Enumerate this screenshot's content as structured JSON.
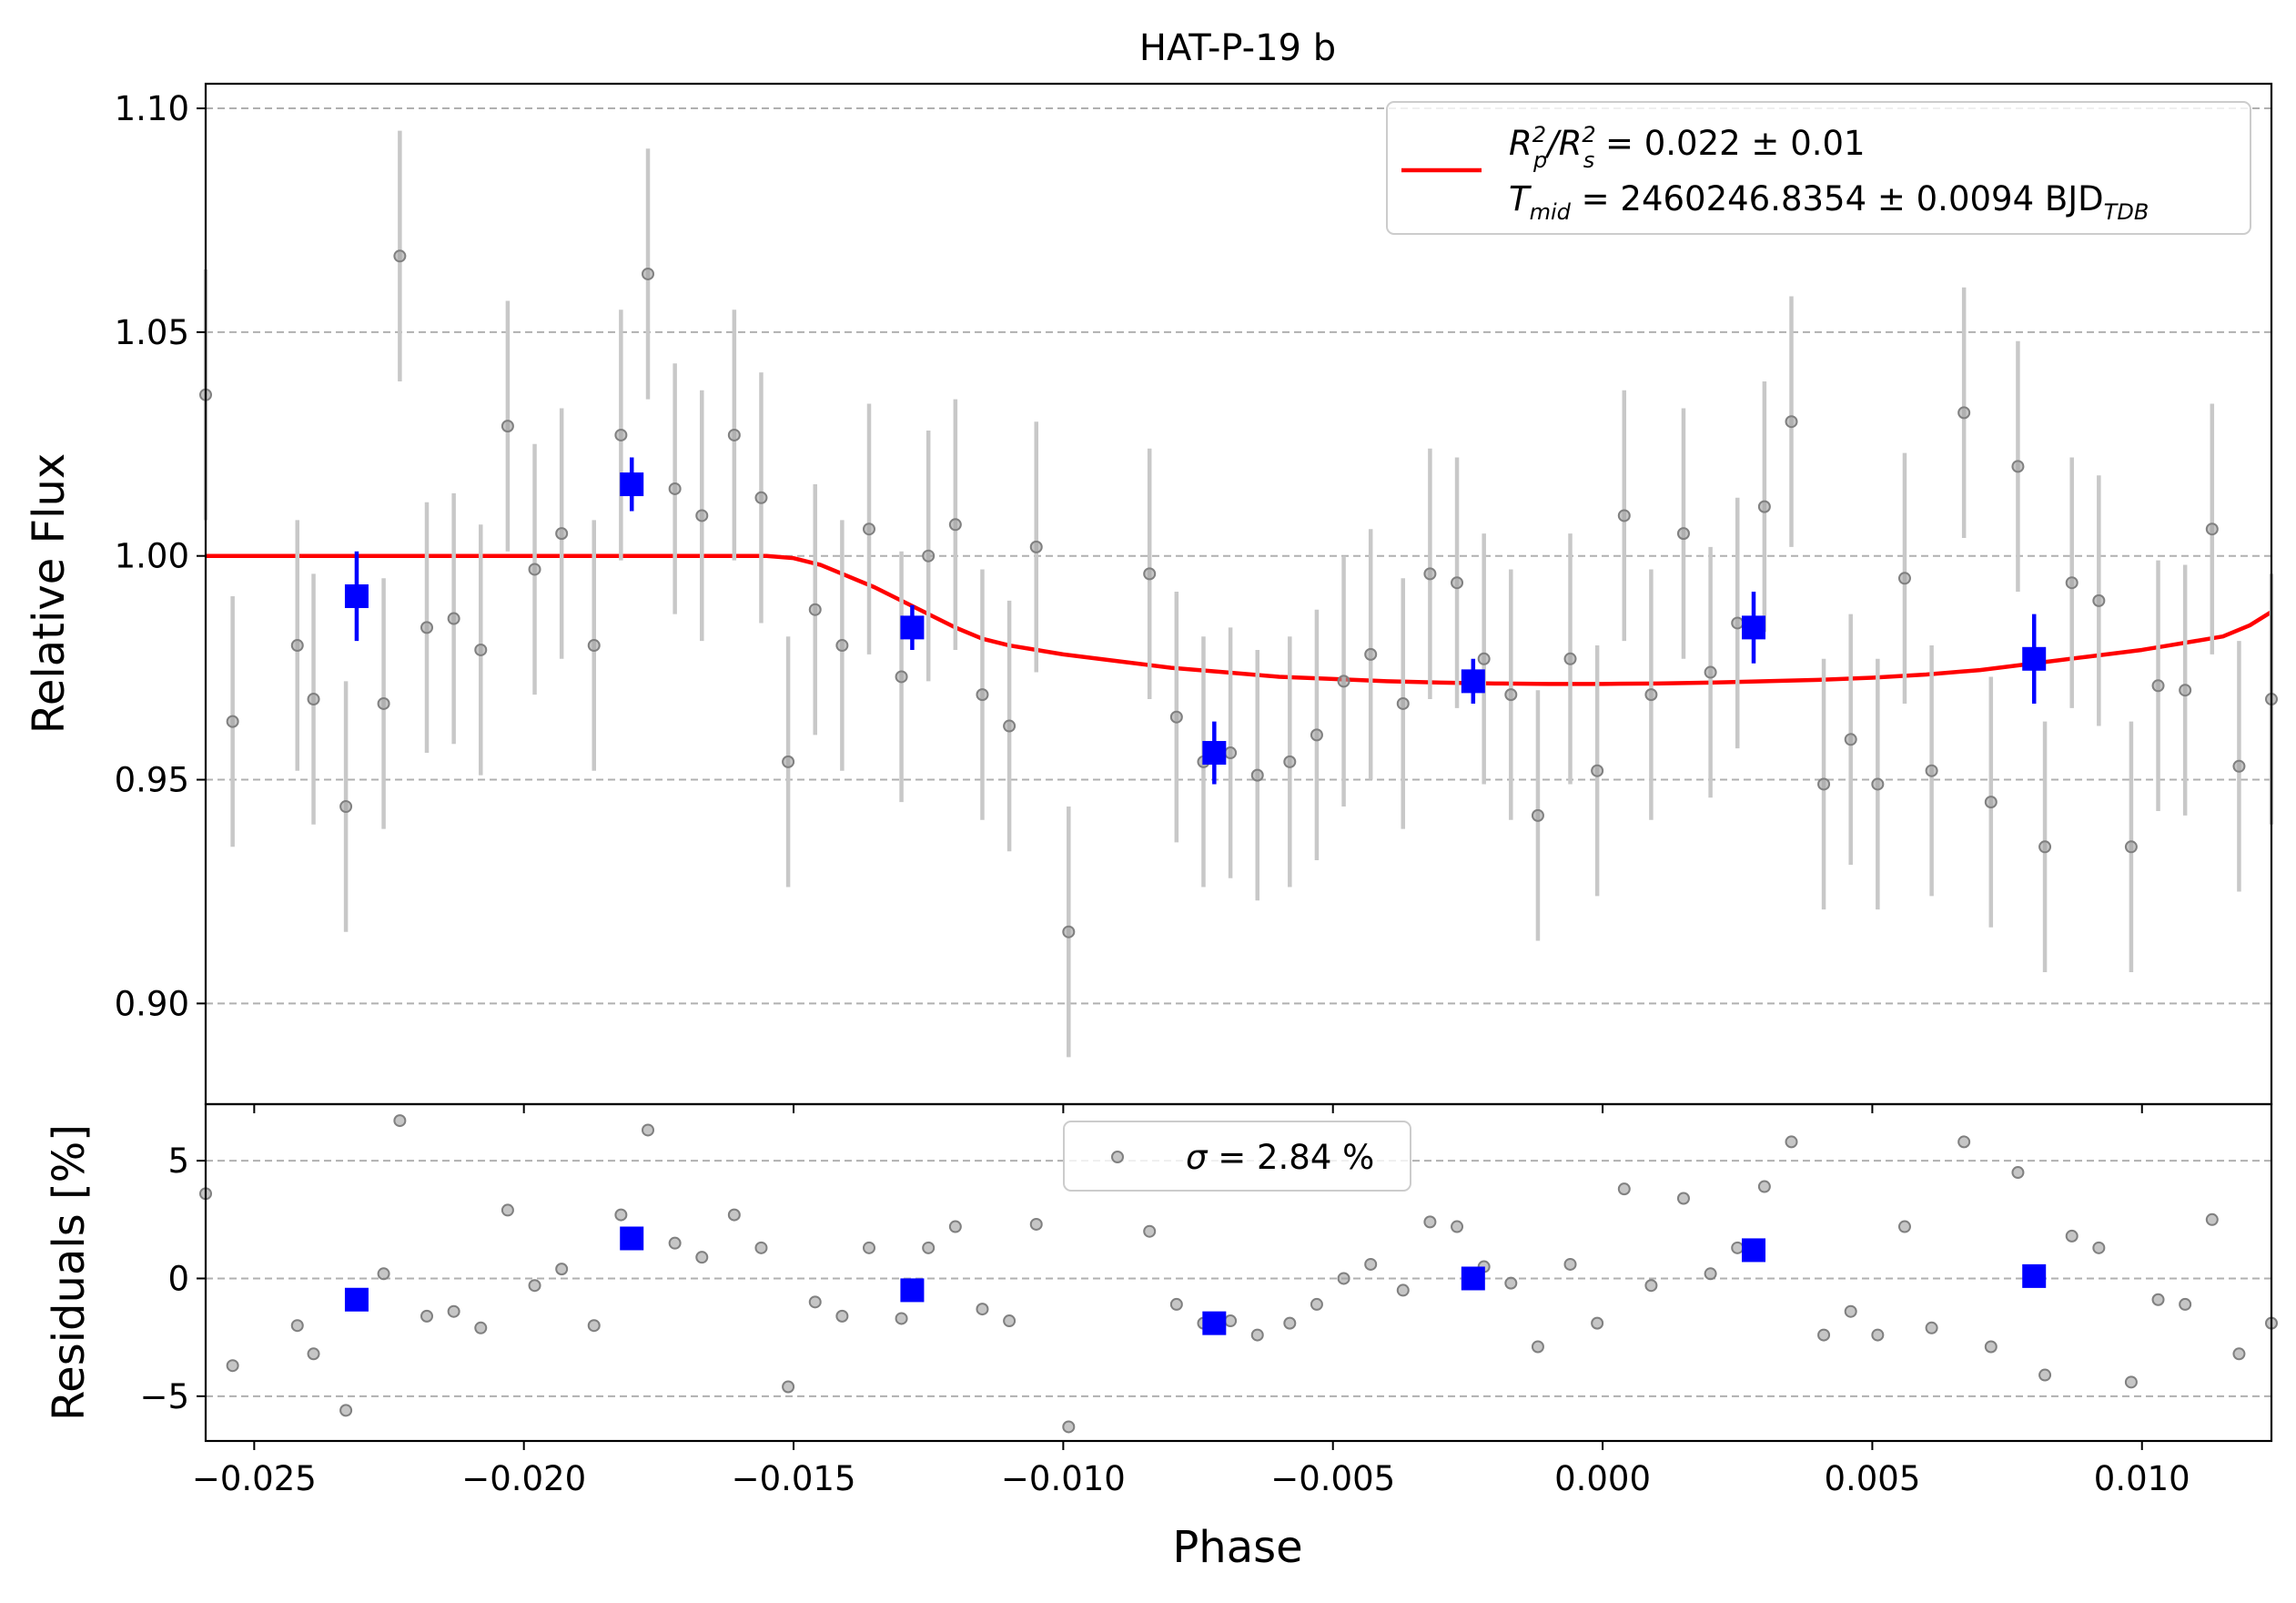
{
  "chart_data": [
    {
      "type": "scatter",
      "title": "HAT-P-19 b",
      "xlabel": "",
      "ylabel": "Relative Flux",
      "xlim": [
        -0.0259,
        0.0124
      ],
      "ylim": [
        0.8775,
        1.1055
      ],
      "grid": "y-dashed",
      "yticks": [
        "0.90",
        "0.95",
        "1.00",
        "1.05",
        "1.10"
      ],
      "yticks_values": [
        0.9,
        0.95,
        1.0,
        1.05,
        1.1
      ],
      "legend": {
        "placement": "upper right",
        "line1": {
          "main": "R",
          "sup1": "2",
          "sub1": "p",
          "slash": "/R",
          "sup2": "2",
          "sub2": "s",
          "value": " = 0.022 ± 0.01"
        },
        "line2": {
          "main": "T",
          "sub1": "mid",
          "value": " = 2460246.8354 ± 0.0094 BJD",
          "sub2": "TDB"
        }
      },
      "series": [
        {
          "kind": "raw",
          "color": "#808080",
          "x": [
            -0.0259,
            -0.0254,
            -0.0242,
            -0.0239,
            -0.0233,
            -0.0226,
            -0.0223,
            -0.0218,
            -0.0213,
            -0.0208,
            -0.0203,
            -0.0198,
            -0.0193,
            -0.0187,
            -0.0182,
            -0.0177,
            -0.0172,
            -0.0167,
            -0.0161,
            -0.0156,
            -0.0151,
            -0.0146,
            -0.0141,
            -0.0136,
            -0.013,
            -0.0125,
            -0.012,
            -0.0115,
            -0.011,
            -0.0105,
            -0.0099,
            -0.0084,
            -0.0079,
            -0.0074,
            -0.0069,
            -0.0064,
            -0.0058,
            -0.0053,
            -0.0048,
            -0.0043,
            -0.0037,
            -0.0032,
            -0.0027,
            -0.0022,
            -0.0017,
            -0.0012,
            -0.0006,
            -0.0001,
            0.0004,
            0.0009,
            0.0015,
            0.002,
            0.0025,
            0.003,
            0.0035,
            0.0041,
            0.0046,
            0.0051,
            0.0056,
            0.0061,
            0.0067,
            0.0072,
            0.0077,
            0.0082,
            0.0087,
            0.0092,
            0.0098,
            0.0103,
            0.0108,
            0.0113,
            0.0118,
            0.0124
          ],
          "y": [
            1.036,
            0.963,
            0.98,
            0.968,
            0.944,
            0.967,
            1.067,
            0.984,
            0.986,
            0.979,
            1.029,
            0.997,
            1.005,
            0.98,
            1.027,
            1.063,
            1.015,
            1.009,
            1.027,
            1.013,
            0.954,
            0.988,
            0.98,
            1.006,
            0.973,
            1.0,
            1.007,
            0.969,
            0.962,
            1.002,
            0.916,
            0.996,
            0.964,
            0.954,
            0.956,
            0.951,
            0.954,
            0.96,
            0.972,
            0.978,
            0.967,
            0.996,
            0.994,
            0.977,
            0.969,
            0.942,
            0.977,
            0.952,
            1.009,
            0.969,
            1.005,
            0.974,
            0.985,
            1.011,
            1.03,
            0.949,
            0.959,
            0.949,
            0.995,
            0.952,
            1.032,
            0.945,
            1.02,
            0.935,
            0.994,
            0.99,
            0.935,
            0.971,
            0.97,
            1.006,
            0.953,
            0.968
          ],
          "yerr": 0.028
        },
        {
          "kind": "binned",
          "color": "#0000ff",
          "x": [
            -0.0231,
            -0.018,
            -0.0128,
            -0.0072,
            -0.0024,
            0.0028,
            0.008
          ],
          "y": [
            0.991,
            1.016,
            0.984,
            0.956,
            0.972,
            0.984,
            0.977
          ],
          "yerr": [
            0.01,
            0.006,
            0.005,
            0.007,
            0.005,
            0.008,
            0.01
          ]
        },
        {
          "kind": "model",
          "color": "#ff0000",
          "x": [
            -0.0259,
            -0.016,
            -0.0155,
            -0.015,
            -0.0145,
            -0.014,
            -0.0135,
            -0.013,
            -0.0125,
            -0.012,
            -0.0115,
            -0.011,
            -0.01,
            -0.009,
            -0.008,
            -0.007,
            -0.006,
            -0.005,
            -0.004,
            -0.003,
            -0.002,
            -0.001,
            0.0,
            0.001,
            0.002,
            0.003,
            0.004,
            0.005,
            0.006,
            0.007,
            0.008,
            0.009,
            0.01,
            0.0105,
            0.011,
            0.0115,
            0.012,
            0.0124
          ],
          "y": [
            1.0,
            1.0,
            1.0,
            0.9995,
            0.998,
            0.9955,
            0.993,
            0.99,
            0.987,
            0.984,
            0.9815,
            0.98,
            0.978,
            0.9765,
            0.975,
            0.974,
            0.973,
            0.9725,
            0.972,
            0.9717,
            0.9715,
            0.9714,
            0.9714,
            0.9715,
            0.9717,
            0.972,
            0.9723,
            0.9728,
            0.9735,
            0.9745,
            0.976,
            0.9775,
            0.979,
            0.98,
            0.981,
            0.982,
            0.9845,
            0.9875
          ]
        }
      ]
    },
    {
      "type": "scatter",
      "title": "",
      "xlabel": "Phase",
      "ylabel": "Residuals [%]",
      "xlim": [
        -0.0259,
        0.0124
      ],
      "ylim": [
        -6.9,
        7.4
      ],
      "grid": "y-dashed",
      "yticks": [
        "−5",
        "0",
        "5"
      ],
      "yticks_values": [
        -5,
        0,
        5
      ],
      "xticks": [
        "−0.025",
        "−0.020",
        "−0.015",
        "−0.010",
        "−0.005",
        "0.000",
        "0.005",
        "0.010"
      ],
      "xticks_values": [
        -0.025,
        -0.02,
        -0.015,
        -0.01,
        -0.005,
        0.0,
        0.005,
        0.01
      ],
      "legend": {
        "placement": "upper center",
        "sigma": "σ",
        "text": " = 2.84 %"
      },
      "series": [
        {
          "kind": "raw",
          "color": "#808080",
          "x": [
            -0.0259,
            -0.0254,
            -0.0242,
            -0.0239,
            -0.0233,
            -0.0226,
            -0.0223,
            -0.0218,
            -0.0213,
            -0.0208,
            -0.0203,
            -0.0198,
            -0.0193,
            -0.0187,
            -0.0182,
            -0.0177,
            -0.0172,
            -0.0167,
            -0.0161,
            -0.0156,
            -0.0151,
            -0.0146,
            -0.0141,
            -0.0136,
            -0.013,
            -0.0125,
            -0.012,
            -0.0115,
            -0.011,
            -0.0105,
            -0.0099,
            -0.0084,
            -0.0079,
            -0.0074,
            -0.0069,
            -0.0064,
            -0.0058,
            -0.0053,
            -0.0048,
            -0.0043,
            -0.0037,
            -0.0032,
            -0.0027,
            -0.0022,
            -0.0017,
            -0.0012,
            -0.0006,
            -0.0001,
            0.0004,
            0.0009,
            0.0015,
            0.002,
            0.0025,
            0.003,
            0.0035,
            0.0041,
            0.0046,
            0.0051,
            0.0056,
            0.0061,
            0.0067,
            0.0072,
            0.0077,
            0.0082,
            0.0087,
            0.0092,
            0.0098,
            0.0103,
            0.0108,
            0.0113,
            0.0118,
            0.0124
          ],
          "y": [
            3.6,
            -3.7,
            -2.0,
            -3.2,
            -5.6,
            0.2,
            6.7,
            -1.6,
            -1.4,
            -2.1,
            2.9,
            -0.3,
            0.4,
            -2.0,
            2.7,
            6.3,
            1.5,
            0.9,
            2.7,
            1.3,
            -4.6,
            -1.0,
            -1.6,
            1.3,
            -1.7,
            1.3,
            2.2,
            -1.3,
            -1.8,
            2.3,
            -6.3,
            2.0,
            -1.1,
            -1.9,
            -1.8,
            -2.4,
            -1.9,
            -1.1,
            -0.0,
            0.6,
            -0.5,
            2.4,
            2.2,
            0.5,
            -0.2,
            -2.9,
            0.6,
            -1.9,
            3.8,
            -0.3,
            3.4,
            0.2,
            1.3,
            3.9,
            5.8,
            -2.4,
            -1.4,
            -2.4,
            2.2,
            -2.1,
            5.8,
            -2.9,
            4.5,
            -4.1,
            1.8,
            1.3,
            -4.4,
            -0.9,
            -1.1,
            2.5,
            -3.2,
            -1.9
          ]
        },
        {
          "kind": "binned",
          "color": "#0000ff",
          "x": [
            -0.0231,
            -0.018,
            -0.0128,
            -0.0072,
            -0.0024,
            0.0028,
            0.008
          ],
          "y": [
            -0.9,
            1.7,
            -0.5,
            -1.9,
            0.0,
            1.2,
            0.1
          ]
        }
      ]
    }
  ]
}
